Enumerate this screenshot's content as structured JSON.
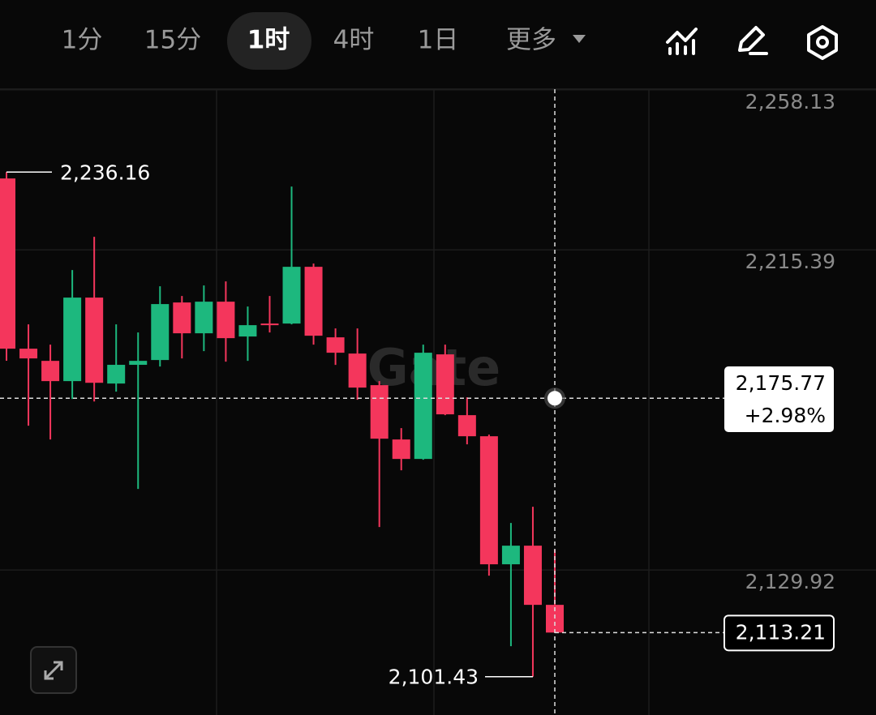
{
  "toolbar": {
    "intervals": [
      "1分",
      "15分",
      "1时",
      "4时",
      "1日"
    ],
    "selected": 2,
    "more": "更多"
  },
  "chart_data": {
    "type": "candlestick",
    "watermark": "Gate",
    "up_color": "#1db87e",
    "down_color": "#f4365c",
    "open": [
      2234.46,
      2189.01,
      2185.76,
      2180.35,
      2202.65,
      2179.7,
      2184.7,
      2185.98,
      2201.35,
      2193.12,
      2201.56,
      2192.26,
      2195.72,
      2195.72,
      2210.87,
      2192.04,
      2187.71,
      2179.27,
      2164.77,
      2159.57,
      2187.49,
      2171.26,
      2165.63,
      2131.44,
      2136.41,
      2120.61
    ],
    "high": [
      2236.16,
      2195.5,
      2190.09,
      2210.0,
      2218.88,
      2195.5,
      2193.34,
      2205.68,
      2203.08,
      2205.9,
      2206.97,
      2200.27,
      2203.08,
      2232.3,
      2211.74,
      2194.42,
      2194.42,
      2180.35,
      2167.8,
      2190.09,
      2190.09,
      2176.02,
      2166.07,
      2142.47,
      2146.8,
      2135.33
    ],
    "low": [
      2185.8,
      2168.45,
      2164.77,
      2175.6,
      2174.9,
      2177.54,
      2151.56,
      2184.25,
      2186.41,
      2188.36,
      2185.55,
      2185.76,
      2193.34,
      2195.5,
      2190.09,
      2184.68,
      2175.37,
      2141.39,
      2156.54,
      2159.36,
      2171.26,
      2163.47,
      2128.4,
      2109.57,
      2101.43,
      2113.21
    ],
    "close": [
      2189.01,
      2186.41,
      2180.35,
      2202.65,
      2179.9,
      2184.7,
      2185.76,
      2200.92,
      2193.12,
      2201.56,
      2191.82,
      2195.29,
      2195.29,
      2210.87,
      2192.47,
      2187.93,
      2178.62,
      2164.98,
      2159.57,
      2187.93,
      2171.48,
      2165.63,
      2131.44,
      2136.41,
      2120.61,
      2113.21
    ],
    "ylim": [
      2091.2,
      2258.3
    ],
    "yticks": [
      {
        "value": 2258.13,
        "label": "2,258.13"
      },
      {
        "value": 2215.39,
        "label": "2,215.39"
      },
      {
        "value": 2129.92,
        "label": "2,129.92"
      }
    ],
    "high_label": {
      "value": 2236.16,
      "label": "2,236.16"
    },
    "low_label": {
      "value": 2101.43,
      "label": "2,101.43"
    },
    "last_price": {
      "value": 2113.21,
      "label": "2,113.21"
    },
    "crosshair": {
      "value": 2175.77,
      "label": "2,175.77",
      "change": "+2.98%"
    }
  }
}
